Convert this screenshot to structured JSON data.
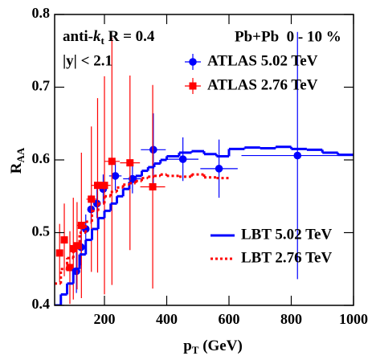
{
  "chart_data": {
    "type": "scatter",
    "annotations": {
      "jet_prefix": "anti-",
      "jet_k": "k",
      "jet_sub": "t",
      "jet_radius": " R = 0.4",
      "rapidity": "|y| < 2.1",
      "system": "Pb+Pb  0 - 10 %"
    },
    "xlabel": {
      "main": "p",
      "sub": "T",
      "unit": " (GeV)"
    },
    "ylabel": {
      "main": "R",
      "sub": "AA"
    },
    "xlim": [
      40,
      1000
    ],
    "xticks": [
      200,
      400,
      600,
      800,
      1000
    ],
    "ylim": [
      0.4,
      0.8
    ],
    "yticks": [
      0.4,
      0.5,
      0.6,
      0.7,
      0.8
    ],
    "series": [
      {
        "name": "ATLAS 5.02 TeV",
        "kind": "points",
        "marker": "circle",
        "color": "#0000ff",
        "x": [
          110,
          125,
          140,
          157,
          176,
          196,
          235,
          290,
          357,
          452,
          568,
          820
        ],
        "xerr": [
          10,
          8,
          7,
          8,
          10,
          10,
          20,
          30,
          40,
          50,
          60,
          180
        ],
        "values": [
          0.447,
          0.48,
          0.505,
          0.532,
          0.54,
          0.56,
          0.578,
          0.574,
          0.614,
          0.601,
          0.588,
          0.606
        ],
        "yerr": [
          0.03,
          0.025,
          0.02,
          0.02,
          0.02,
          0.02,
          0.02,
          0.02,
          0.05,
          0.03,
          0.04,
          0.17
        ]
      },
      {
        "name": "ATLAS 2.76 TeV",
        "kind": "points",
        "marker": "square",
        "color": "#ff0000",
        "x": [
          56,
          71,
          89,
          100,
          112,
          126,
          158,
          178,
          200,
          224,
          282,
          355
        ],
        "xerr": [
          7,
          8,
          10,
          10,
          12,
          13,
          16,
          20,
          20,
          25,
          32,
          40
        ],
        "values": [
          0.472,
          0.49,
          0.452,
          0.478,
          0.482,
          0.51,
          0.546,
          0.565,
          0.565,
          0.598,
          0.596,
          0.563
        ],
        "yerr": [
          0.04,
          0.05,
          0.05,
          0.07,
          0.06,
          0.1,
          0.1,
          0.12,
          0.15,
          0.17,
          0.12,
          0.14
        ]
      },
      {
        "name": "LBT 5.02 TeV",
        "kind": "step",
        "dashed": false,
        "color": "#0000ff",
        "bins": [
          40,
          60,
          80,
          100,
          120,
          140,
          160,
          180,
          200,
          220,
          240,
          260,
          280,
          300,
          320,
          340,
          360,
          380,
          400,
          440,
          480,
          520,
          560,
          600,
          650,
          700,
          750,
          800,
          850,
          900,
          950,
          1000
        ],
        "values": [
          0.4,
          0.415,
          0.43,
          0.45,
          0.47,
          0.49,
          0.505,
          0.52,
          0.53,
          0.54,
          0.55,
          0.56,
          0.57,
          0.578,
          0.585,
          0.59,
          0.595,
          0.6,
          0.605,
          0.61,
          0.612,
          0.608,
          0.605,
          0.615,
          0.617,
          0.616,
          0.618,
          0.615,
          0.614,
          0.61,
          0.607
        ]
      },
      {
        "name": "LBT 2.76 TeV",
        "kind": "step",
        "dashed": true,
        "color": "#ff0000",
        "bins": [
          40,
          60,
          80,
          100,
          120,
          140,
          160,
          180,
          200,
          220,
          240,
          260,
          280,
          300,
          320,
          340,
          360,
          380,
          400,
          440,
          480,
          520,
          560,
          600
        ],
        "values": [
          0.43,
          0.45,
          0.465,
          0.48,
          0.5,
          0.515,
          0.53,
          0.54,
          0.55,
          0.556,
          0.562,
          0.566,
          0.568,
          0.571,
          0.575,
          0.577,
          0.578,
          0.58,
          0.578,
          0.577,
          0.58,
          0.576,
          0.575
        ]
      }
    ]
  }
}
